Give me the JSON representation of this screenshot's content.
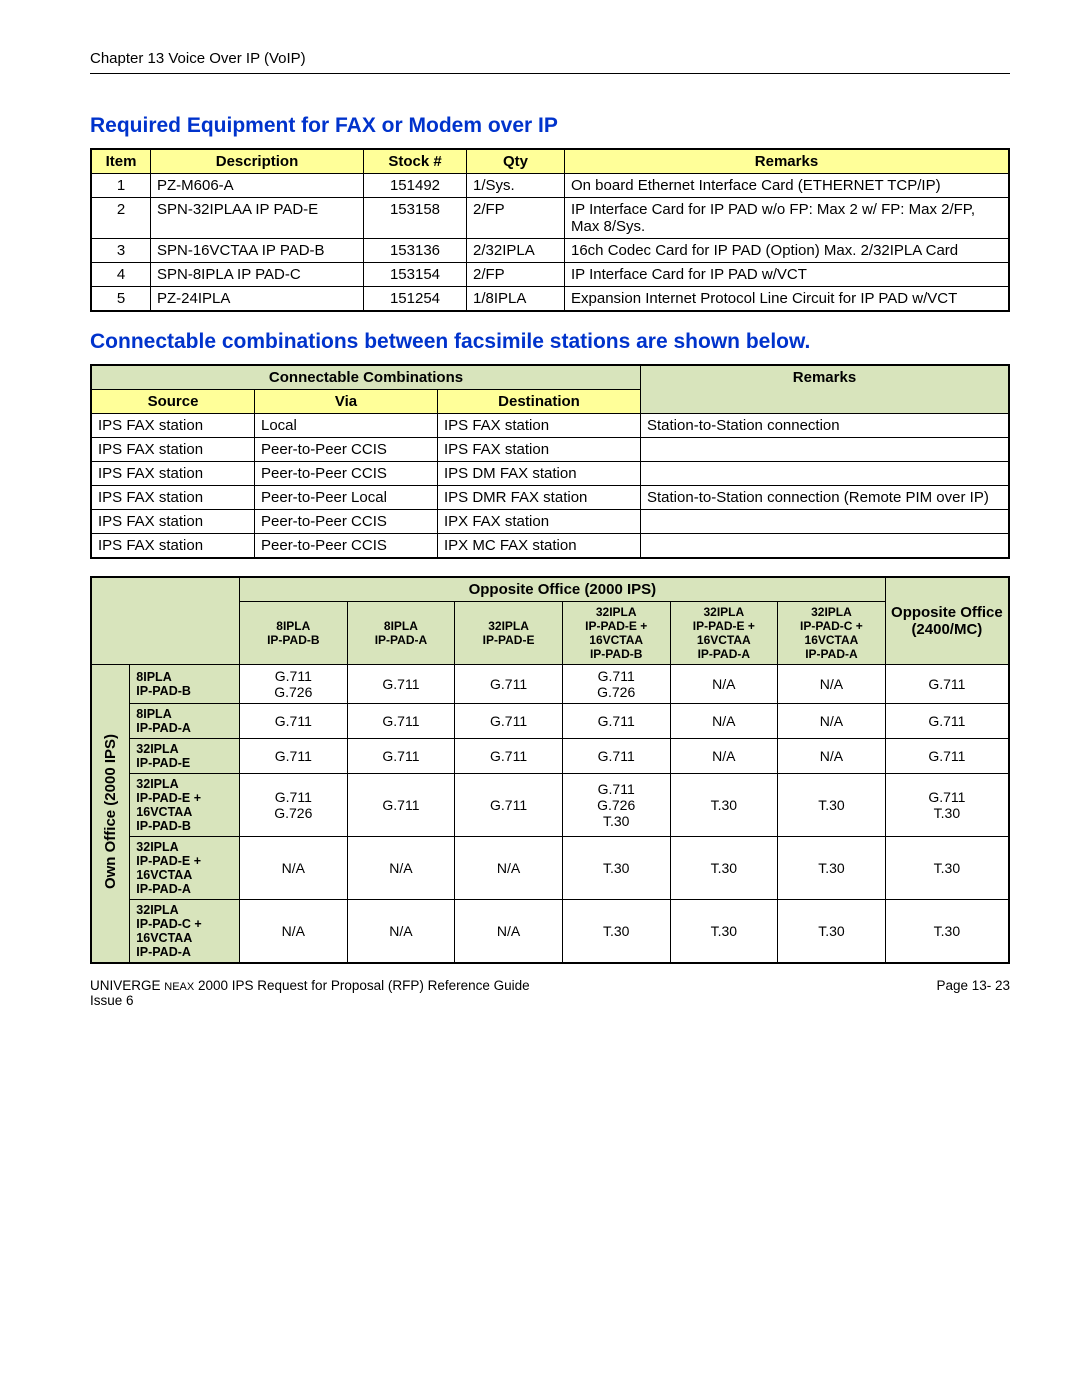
{
  "chapter_header": "Chapter 13 Voice Over IP (VoIP)",
  "section1_title": "Required Equipment for FAX or Modem over IP",
  "table1": {
    "headers": [
      "Item",
      "Description",
      "Stock #",
      "Qty",
      "Remarks"
    ],
    "rows": [
      [
        "1",
        "PZ-M606-A",
        "151492",
        "1/Sys.",
        "On board Ethernet Interface Card (ETHERNET TCP/IP)"
      ],
      [
        "2",
        "SPN-32IPLAA IP PAD-E",
        "153158",
        "2/FP",
        "IP Interface Card for IP PAD w/o FP: Max 2 w/ FP: Max 2/FP, Max 8/Sys."
      ],
      [
        "3",
        "SPN-16VCTAA IP PAD-B",
        "153136",
        "2/32IPLA",
        "16ch Codec Card for IP PAD (Option) Max. 2/32IPLA Card"
      ],
      [
        "4",
        "SPN-8IPLA IP PAD-C",
        "153154",
        "2/FP",
        "IP Interface Card for IP PAD w/VCT"
      ],
      [
        "5",
        "PZ-24IPLA",
        "151254",
        "1/8IPLA",
        "Expansion Internet Protocol Line Circuit for IP PAD w/VCT"
      ]
    ]
  },
  "section2_title": "Connectable combinations between facsimile stations are shown below.",
  "table2": {
    "top_headers": [
      "Connectable Combinations",
      "Remarks"
    ],
    "sub_headers": [
      "Source",
      "Via",
      "Destination"
    ],
    "rows": [
      [
        "IPS FAX station",
        "Local",
        "IPS FAX station",
        "Station-to-Station connection"
      ],
      [
        "IPS FAX station",
        "Peer-to-Peer CCIS",
        "IPS FAX station",
        ""
      ],
      [
        "IPS FAX station",
        "Peer-to-Peer CCIS",
        "IPS DM FAX station",
        ""
      ],
      [
        "IPS FAX station",
        "Peer-to-Peer Local",
        "IPS DMR FAX station",
        "Station-to-Station connection (Remote PIM over IP)"
      ],
      [
        "IPS FAX station",
        "Peer-to-Peer CCIS",
        "IPX FAX station",
        ""
      ],
      [
        "IPS FAX station",
        "Peer-to-Peer CCIS",
        "IPX MC FAX station",
        ""
      ]
    ]
  },
  "table3": {
    "top_header_opp2000": "Opposite Office (2000 IPS)",
    "top_header_opp2400": "Opposite Office (2400/MC)",
    "col_headers": [
      "8IPLA IP-PAD-B",
      "8IPLA IP-PAD-A",
      "32IPLA IP-PAD-E",
      "32IPLA IP-PAD-E + 16VCTAA IP-PAD-B",
      "32IPLA IP-PAD-E + 16VCTAA IP-PAD-A",
      "32IPLA IP-PAD-C + 16VCTAA IP-PAD-A"
    ],
    "side_label": "Own Office (2000 IPS)",
    "row_labels": [
      "8IPLA IP-PAD-B",
      "8IPLA IP-PAD-A",
      "32IPLA IP-PAD-E",
      "32IPLA IP-PAD-E + 16VCTAA IP-PAD-B",
      "32IPLA IP-PAD-E + 16VCTAA IP-PAD-A",
      "32IPLA IP-PAD-C + 16VCTAA IP-PAD-A"
    ],
    "cells": [
      [
        "G.711\nG.726",
        "G.711",
        "G.711",
        "G.711\nG.726",
        "N/A",
        "N/A",
        "G.711"
      ],
      [
        "G.711",
        "G.711",
        "G.711",
        "G.711",
        "N/A",
        "N/A",
        "G.711"
      ],
      [
        "G.711",
        "G.711",
        "G.711",
        "G.711",
        "N/A",
        "N/A",
        "G.711"
      ],
      [
        "G.711\nG.726",
        "G.711",
        "G.711",
        "G.711\nG.726\nT.30",
        "T.30",
        "T.30",
        "G.711\nT.30"
      ],
      [
        "N/A",
        "N/A",
        "N/A",
        "T.30",
        "T.30",
        "T.30",
        "T.30"
      ],
      [
        "N/A",
        "N/A",
        "N/A",
        "T.30",
        "T.30",
        "T.30",
        "T.30"
      ]
    ]
  },
  "footer_left_line1_a": "UNIVERGE ",
  "footer_left_line1_b": "NEAX",
  "footer_left_line1_c": " 2000 IPS Request for Proposal (RFP) Reference Guide",
  "footer_left_line2": "Issue 6",
  "footer_right": "Page 13- 23"
}
